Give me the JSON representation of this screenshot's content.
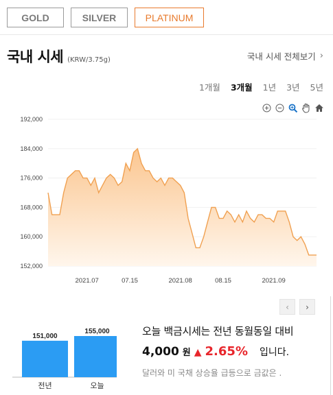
{
  "metal_tabs": [
    {
      "label": "GOLD"
    },
    {
      "label": "SILVER"
    },
    {
      "label": "PLATINUM"
    }
  ],
  "header": {
    "title": "국내 시세",
    "unit": "(KRW/3.75g)",
    "view_all": "국내 시세 전체보기"
  },
  "periods": [
    {
      "label": "1개월"
    },
    {
      "label": "3개월"
    },
    {
      "label": "1년"
    },
    {
      "label": "3년"
    },
    {
      "label": "5년"
    }
  ],
  "colors": {
    "accent": "#e87a2c",
    "line": "#f0a050",
    "area_top": "#fbc690",
    "area_bottom": "#fff6ec",
    "bar": "#2b9cf3",
    "up": "#e8262c"
  },
  "chart_data": [
    {
      "type": "area",
      "ylim": [
        152000,
        192000
      ],
      "yticks": [
        "192,000",
        "184,000",
        "176,000",
        "168,000",
        "160,000",
        "152,000"
      ],
      "ytick_values": [
        192000,
        184000,
        176000,
        168000,
        160000,
        152000
      ],
      "xticks": [
        {
          "label": "2021.07",
          "index": 10
        },
        {
          "label": "07.15",
          "index": 21
        },
        {
          "label": "2021.08",
          "index": 34
        },
        {
          "label": "08.15",
          "index": 45
        },
        {
          "label": "2021.09",
          "index": 58
        }
      ],
      "values": [
        172000,
        166000,
        166000,
        166000,
        172000,
        176000,
        177000,
        178000,
        178000,
        176000,
        176000,
        174000,
        176000,
        172000,
        174000,
        176000,
        177000,
        176000,
        174000,
        175000,
        180000,
        178000,
        183000,
        184000,
        180000,
        178000,
        178000,
        176000,
        175000,
        176000,
        174000,
        176000,
        176000,
        175000,
        174000,
        172000,
        165000,
        161000,
        157000,
        157000,
        160000,
        164000,
        168000,
        168000,
        165000,
        165000,
        167000,
        166000,
        164000,
        166000,
        164000,
        167000,
        165000,
        164000,
        166000,
        166000,
        165000,
        165000,
        164000,
        167000,
        167000,
        167000,
        164000,
        160000,
        159000,
        160000,
        158000,
        155000,
        155000,
        155000
      ]
    },
    {
      "type": "bar",
      "categories": [
        "전년",
        "오늘"
      ],
      "values": [
        151000,
        155000
      ],
      "value_labels": [
        "151,000",
        "155,000"
      ]
    }
  ],
  "summary": {
    "line1": "오늘 백금시세는 전년 동월동일 대비",
    "diff_amount": "4,000",
    "diff_unit": "원",
    "diff_pct": "2.65%",
    "suffix": "입니다.",
    "line3": "달러와 미 국채 상승율 급등으로 금값은 ."
  }
}
